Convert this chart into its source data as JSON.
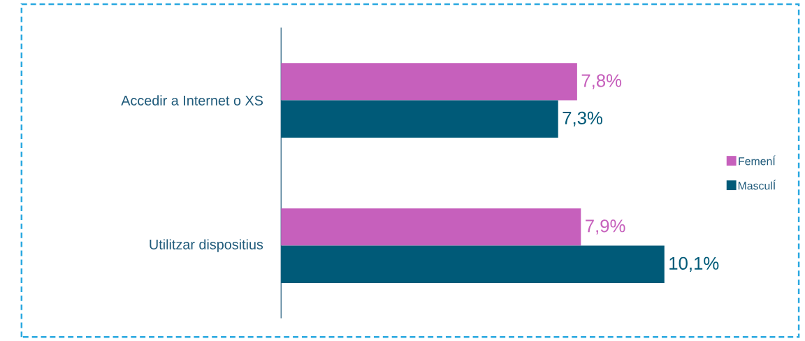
{
  "chart_data": {
    "type": "bar",
    "orientation": "horizontal",
    "categories": [
      "Accedir a Internet o XS",
      "Utilitzar dispositius"
    ],
    "series": [
      {
        "name": "FemenÍ",
        "color": "#c660bc",
        "values": [
          7.8,
          7.9
        ],
        "value_labels": [
          "7,8%",
          "7,9%"
        ]
      },
      {
        "name": "MasculÍ",
        "color": "#005a78",
        "values": [
          7.3,
          10.1
        ],
        "value_labels": [
          "7,3%",
          "10,1%"
        ]
      }
    ],
    "legend": "right"
  }
}
